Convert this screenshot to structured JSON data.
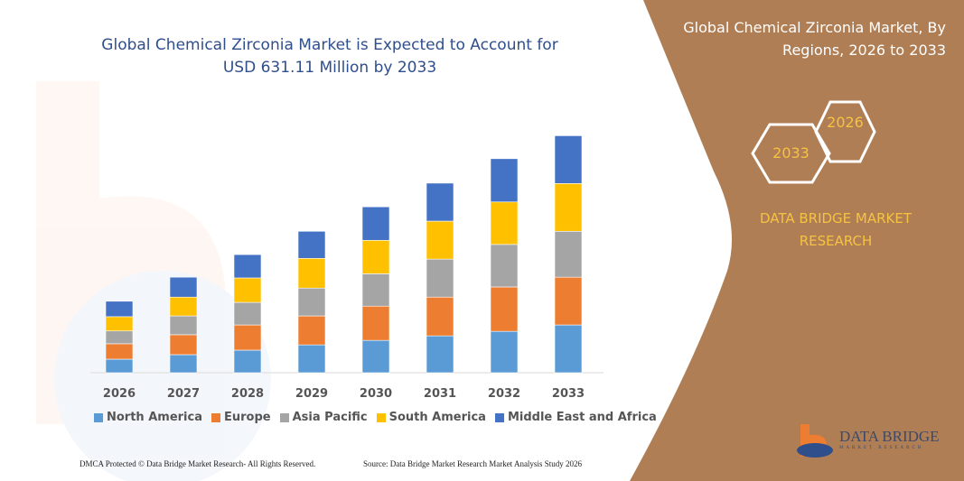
{
  "title": "Global Chemical Zirconia Market is Expected to Account for USD 631.11 Million by 2033",
  "right_panel": {
    "title": "Global Chemical Zirconia Market, By Regions, 2026 to 2033",
    "hex_start": "2026",
    "hex_end": "2033",
    "brand": "DATA BRIDGE MARKET RESEARCH",
    "logo_text": "DATA BRIDGE",
    "logo_subtext": "MARKET RESEARCH",
    "panel_color": "#B07E54"
  },
  "footer": {
    "left": "DMCA Protected © Data Bridge Market Research- All Rights Reserved.",
    "right": "Source: Data Bridge Market Research Market Analysis Study 2026"
  },
  "chart_data": {
    "type": "bar",
    "stacked": true,
    "title": "Global Chemical Zirconia Market is Expected to Account for USD 631.11 Million by 2033",
    "xlabel": "",
    "ylabel": "",
    "grid": false,
    "legend_placement": "bottom",
    "categories": [
      "2026",
      "2027",
      "2028",
      "2029",
      "2030",
      "2031",
      "2032",
      "2033"
    ],
    "series": [
      {
        "name": "North America",
        "color": "#5B9BD5",
        "values": [
          36,
          48,
          60,
          74,
          86,
          98,
          110,
          127
        ]
      },
      {
        "name": "Europe",
        "color": "#ED7D31",
        "values": [
          41,
          53,
          67,
          77,
          91,
          103,
          118,
          127
        ]
      },
      {
        "name": "Asia Pacific",
        "color": "#A5A5A5",
        "values": [
          34,
          50,
          60,
          74,
          86,
          101,
          113,
          122
        ]
      },
      {
        "name": "South America",
        "color": "#FFC000",
        "values": [
          38,
          50,
          65,
          79,
          89,
          101,
          113,
          127
        ]
      },
      {
        "name": "Middle East and Africa",
        "color": "#4472C4",
        "values": [
          41,
          53,
          62,
          72,
          89,
          101,
          115,
          127
        ]
      }
    ],
    "ylim": [
      0,
      631
    ]
  }
}
